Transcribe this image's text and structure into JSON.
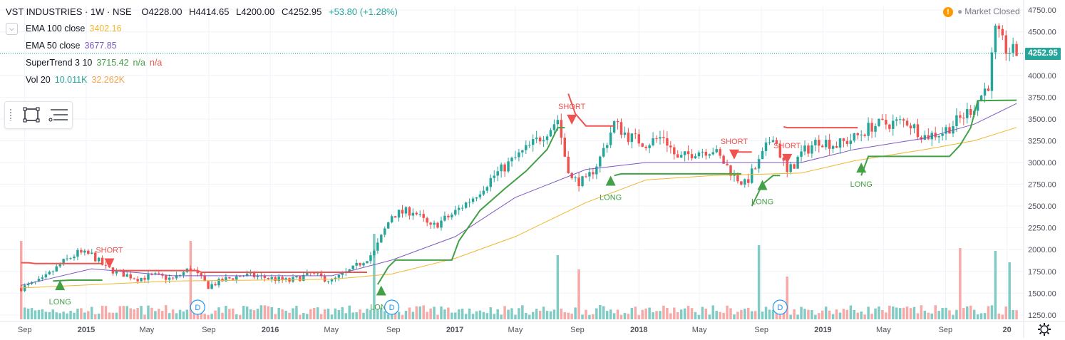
{
  "header": {
    "symbol": "VST INDUSTRIES · 1W · NSE",
    "open": "O4228.00",
    "high": "H4414.65",
    "low": "L4200.00",
    "close": "C4252.95",
    "change": "+53.80 (+1.28%)"
  },
  "legend": {
    "collapse_icon": "chevron-down-icon",
    "ema100": {
      "label": "EMA 100 close",
      "value": "3402.16"
    },
    "ema50": {
      "label": "EMA 50 close",
      "value": "3677.85"
    },
    "supertrend": {
      "label": "SuperTrend 3 10",
      "value": "3715.42",
      "v2": "n/a",
      "v3": "n/a"
    },
    "volume": {
      "label": "Vol 20",
      "value": "10.011K",
      "ma": "32.262K"
    }
  },
  "toolbox": {
    "icons": [
      "drag-handle-icon",
      "rectangle-tool-icon",
      "list-settings-icon"
    ]
  },
  "status": {
    "text": "Market Closed",
    "icon": "warning-icon"
  },
  "last_price": "4252.95",
  "colors": {
    "up": "#26a69a",
    "down": "#ef5350",
    "ema100": "#f0b62d",
    "ema50": "#7e57c2",
    "st_up": "#43a047",
    "st_down": "#ef5350",
    "vol_up": "#80cbc4",
    "vol_down": "#f7a9a7",
    "grid": "#f0f3fa",
    "axis_text": "#50535e"
  },
  "chart_data": {
    "type": "candlestick",
    "title": "VST INDUSTRIES · 1W · NSE",
    "ylim": [
      1200,
      4800
    ],
    "y_ticks": [
      "4750.00",
      "4500.00",
      "4250.00",
      "4000.00",
      "3750.00",
      "3500.00",
      "3250.00",
      "3000.00",
      "2750.00",
      "2500.00",
      "2250.00",
      "2000.00",
      "1750.00",
      "1500.00",
      "1250.00"
    ],
    "x_ticks": [
      "Sep",
      "2015",
      "May",
      "Sep",
      "2016",
      "May",
      "Sep",
      "2017",
      "May",
      "Sep",
      "2018",
      "May",
      "Sep",
      "2019",
      "May",
      "Sep",
      "20"
    ],
    "close_path": [
      [
        "2014-08-25",
        1560
      ],
      [
        "2014-10-06",
        1650
      ],
      [
        "2014-11-17",
        1860
      ],
      [
        "2014-12-15",
        1960
      ],
      [
        "2015-01-12",
        1940
      ],
      [
        "2015-02-09",
        1790
      ],
      [
        "2015-03-09",
        1730
      ],
      [
        "2015-04-13",
        1670
      ],
      [
        "2015-05-18",
        1700
      ],
      [
        "2015-06-22",
        1660
      ],
      [
        "2015-07-27",
        1790
      ],
      [
        "2015-08-31",
        1580
      ],
      [
        "2015-10-05",
        1660
      ],
      [
        "2015-11-09",
        1710
      ],
      [
        "2015-12-21",
        1680
      ],
      [
        "2016-02-08",
        1640
      ],
      [
        "2016-03-21",
        1720
      ],
      [
        "2016-05-02",
        1640
      ],
      [
        "2016-06-13",
        1780
      ],
      [
        "2016-07-25",
        1970
      ],
      [
        "2016-08-29",
        2400
      ],
      [
        "2016-10-10",
        2450
      ],
      [
        "2016-11-14",
        2250
      ],
      [
        "2016-12-26",
        2400
      ],
      [
        "2017-02-06",
        2600
      ],
      [
        "2017-03-20",
        2850
      ],
      [
        "2017-05-01",
        3050
      ],
      [
        "2017-06-12",
        3250
      ],
      [
        "2017-07-10",
        3400
      ],
      [
        "2017-07-24",
        3500
      ],
      [
        "2017-08-07",
        3080
      ],
      [
        "2017-08-21",
        2800
      ],
      [
        "2017-09-18",
        2780
      ],
      [
        "2017-10-16",
        3050
      ],
      [
        "2017-11-13",
        3450
      ],
      [
        "2017-12-11",
        3300
      ],
      [
        "2018-01-15",
        3220
      ],
      [
        "2018-02-19",
        3300
      ],
      [
        "2018-03-19",
        3030
      ],
      [
        "2018-04-23",
        3130
      ],
      [
        "2018-05-28",
        3150
      ],
      [
        "2018-07-09",
        2850
      ],
      [
        "2018-07-30",
        2750
      ],
      [
        "2018-08-27",
        3000
      ],
      [
        "2018-09-24",
        3330
      ],
      [
        "2018-10-22",
        2870
      ],
      [
        "2018-11-19",
        3100
      ],
      [
        "2018-12-24",
        3260
      ],
      [
        "2019-01-28",
        3200
      ],
      [
        "2019-03-04",
        3280
      ],
      [
        "2019-04-08",
        3420
      ],
      [
        "2019-05-13",
        3450
      ],
      [
        "2019-06-17",
        3470
      ],
      [
        "2019-07-22",
        3300
      ],
      [
        "2019-08-26",
        3350
      ],
      [
        "2019-09-30",
        3500
      ],
      [
        "2019-10-28",
        3650
      ],
      [
        "2019-11-25",
        3900
      ],
      [
        "2019-12-09",
        4500
      ],
      [
        "2019-12-30",
        4300
      ],
      [
        "2020-01-20",
        4252.95
      ]
    ],
    "ema100_path": [
      [
        "2014-08-25",
        1560
      ],
      [
        "2015-06-22",
        1640
      ],
      [
        "2016-05-02",
        1660
      ],
      [
        "2016-08-29",
        1720
      ],
      [
        "2017-01-02",
        1900
      ],
      [
        "2017-05-01",
        2150
      ],
      [
        "2017-09-18",
        2540
      ],
      [
        "2018-01-15",
        2800
      ],
      [
        "2018-05-28",
        2850
      ],
      [
        "2018-11-19",
        2880
      ],
      [
        "2019-03-04",
        3020
      ],
      [
        "2019-07-22",
        3150
      ],
      [
        "2019-10-28",
        3250
      ],
      [
        "2020-01-20",
        3402.16
      ]
    ],
    "ema50_path": [
      [
        "2014-08-25",
        1590
      ],
      [
        "2015-01-12",
        1780
      ],
      [
        "2015-06-22",
        1700
      ],
      [
        "2016-05-02",
        1700
      ],
      [
        "2016-08-29",
        1880
      ],
      [
        "2017-01-02",
        2150
      ],
      [
        "2017-05-01",
        2600
      ],
      [
        "2017-09-18",
        2920
      ],
      [
        "2018-01-15",
        3000
      ],
      [
        "2018-05-28",
        3000
      ],
      [
        "2018-11-19",
        3000
      ],
      [
        "2019-03-04",
        3150
      ],
      [
        "2019-07-22",
        3280
      ],
      [
        "2019-10-28",
        3440
      ],
      [
        "2020-01-20",
        3677.85
      ]
    ],
    "supertrend_segments": [
      {
        "trend": "down",
        "points": [
          [
            "2014-08-25",
            1850
          ],
          [
            "2014-09-08",
            1850
          ],
          [
            "2014-09-22",
            1840
          ],
          [
            "2015-02-02",
            1840
          ]
        ]
      },
      {
        "trend": "up",
        "points": [
          [
            "2014-10-27",
            1640
          ],
          [
            "2014-12-01",
            1650
          ],
          [
            "2015-02-02",
            1650
          ]
        ]
      },
      {
        "trend": "down",
        "points": [
          [
            "2015-02-23",
            1760
          ],
          [
            "2015-08-10",
            1760
          ],
          [
            "2015-08-17",
            1740
          ],
          [
            "2016-07-11",
            1740
          ]
        ]
      },
      {
        "trend": "up",
        "points": [
          [
            "2016-08-01",
            1600
          ],
          [
            "2016-08-22",
            1800
          ],
          [
            "2016-09-05",
            1880
          ],
          [
            "2016-12-26",
            1880
          ],
          [
            "2017-01-09",
            2100
          ],
          [
            "2017-02-20",
            2450
          ],
          [
            "2017-04-10",
            2700
          ],
          [
            "2017-05-22",
            2900
          ],
          [
            "2017-07-03",
            3150
          ],
          [
            "2017-07-24",
            3400
          ],
          [
            "2017-08-07",
            3400
          ]
        ]
      },
      {
        "trend": "down",
        "points": [
          [
            "2017-08-14",
            3790
          ],
          [
            "2017-08-28",
            3560
          ],
          [
            "2017-09-18",
            3420
          ],
          [
            "2017-11-13",
            3420
          ]
        ]
      },
      {
        "trend": "up",
        "points": [
          [
            "2017-11-13",
            2850
          ],
          [
            "2017-11-27",
            2870
          ],
          [
            "2018-07-23",
            2870
          ]
        ]
      },
      {
        "trend": "down",
        "points": [
          [
            "2018-07-16",
            3120
          ],
          [
            "2018-08-13",
            3120
          ]
        ]
      },
      {
        "trend": "up",
        "points": [
          [
            "2018-08-13",
            2500
          ],
          [
            "2018-09-03",
            2750
          ],
          [
            "2018-09-24",
            2850
          ],
          [
            "2018-10-08",
            2850
          ]
        ]
      },
      {
        "trend": "down",
        "points": [
          [
            "2018-10-15",
            3410
          ],
          [
            "2018-10-22",
            3400
          ],
          [
            "2019-03-11",
            3400
          ]
        ]
      },
      {
        "trend": "up",
        "points": [
          [
            "2019-03-18",
            2850
          ],
          [
            "2019-04-01",
            3070
          ],
          [
            "2019-09-09",
            3070
          ],
          [
            "2019-09-30",
            3200
          ],
          [
            "2019-10-21",
            3400
          ],
          [
            "2019-11-04",
            3710
          ],
          [
            "2020-01-20",
            3715.42
          ]
        ]
      }
    ],
    "signals": [
      {
        "type": "LONG",
        "date": "2014-11-10",
        "price": 1600
      },
      {
        "type": "SHORT",
        "date": "2015-02-16",
        "price": 1850
      },
      {
        "type": "LONG",
        "date": "2016-08-08",
        "price": 1540
      },
      {
        "type": "SHORT",
        "date": "2017-08-21",
        "price": 3500
      },
      {
        "type": "LONG",
        "date": "2017-11-06",
        "price": 2800
      },
      {
        "type": "SHORT",
        "date": "2018-07-09",
        "price": 3100
      },
      {
        "type": "LONG",
        "date": "2018-09-03",
        "price": 2750
      },
      {
        "type": "SHORT",
        "date": "2018-10-22",
        "price": 3050
      },
      {
        "type": "LONG",
        "date": "2019-03-18",
        "price": 2950
      }
    ],
    "dividend_markers": [
      {
        "label": "D",
        "date": "2015-08-10"
      },
      {
        "label": "D",
        "date": "2016-08-29"
      },
      {
        "label": "D",
        "date": "2018-10-08"
      }
    ],
    "volume_spikes": [
      [
        "2014-08-25",
        0.55
      ],
      [
        "2015-07-27",
        0.55
      ],
      [
        "2016-07-25",
        0.6
      ],
      [
        "2017-07-24",
        0.45
      ],
      [
        "2017-09-04",
        0.35
      ],
      [
        "2018-08-27",
        0.52
      ],
      [
        "2018-10-22",
        0.3
      ],
      [
        "2019-09-30",
        0.5
      ],
      [
        "2019-12-09",
        0.48
      ],
      [
        "2020-01-06",
        0.4
      ]
    ]
  }
}
